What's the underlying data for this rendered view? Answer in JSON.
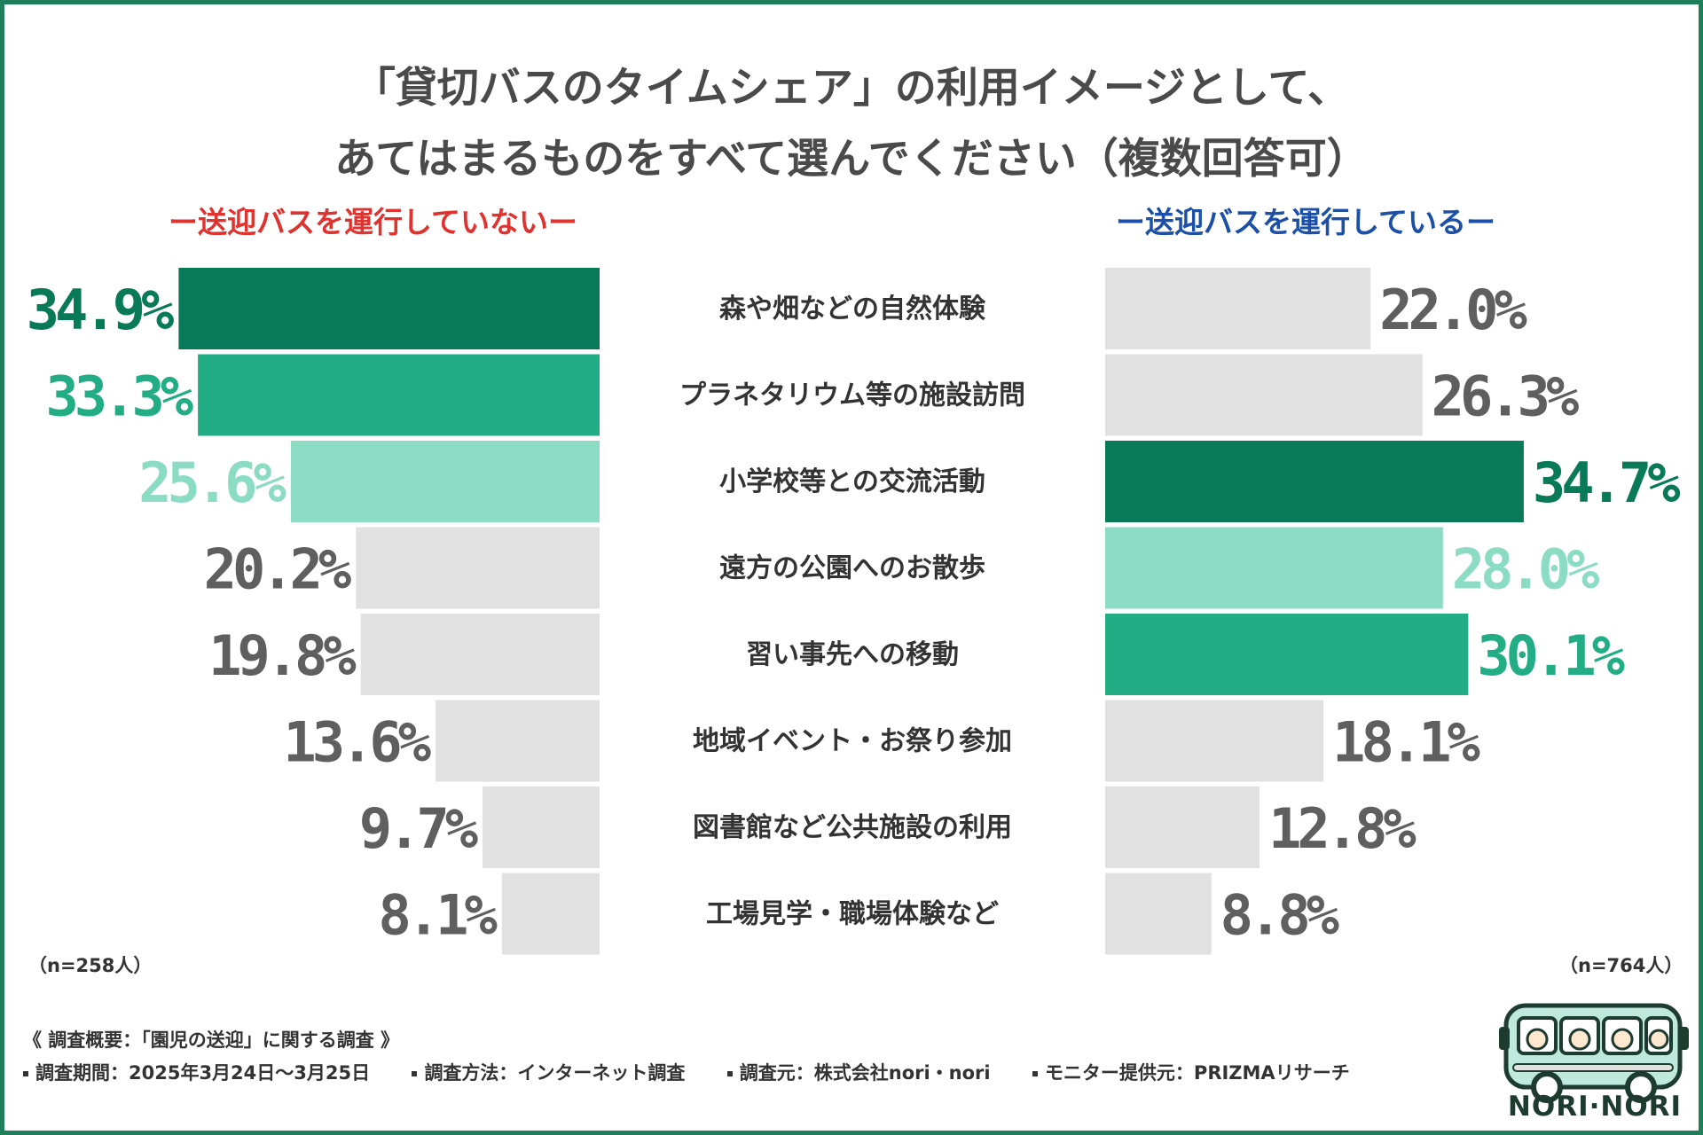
{
  "title_line1": "「貸切バスのタイムシェア」の利用イメージとして、",
  "title_line2": "あてはまるものをすべて選んでください（複数回答可）",
  "left_header": "ー送迎バスを運行していないー",
  "right_header": "ー送迎バスを運行しているー",
  "left_n": "（n=258人）",
  "right_n": "（n=764人）",
  "footer": {
    "summary": "《 調査概要：「園児の送迎」に関する調査 》",
    "items": [
      "調査期間：2025年3月24日〜3月25日",
      "調査方法：インターネット調査",
      "調査元：株式会社nori・nori",
      "モニター提供元：PRIZMAリサーチ"
    ]
  },
  "logo_text": "NORI·NORI",
  "colors": {
    "dark_green": "#097a58",
    "mid_green": "#22ad85",
    "light_green": "#8cdcc4",
    "gray_bar": "#e1e1e1",
    "gray_text": "#5f5f5f",
    "frame": "#1f7f5b",
    "left_header": "#e0332f",
    "right_header": "#1b4fa8"
  },
  "chart_data": {
    "type": "bar",
    "orientation": "horizontal-butterfly",
    "title": "「貸切バスのタイムシェア」の利用イメージとして、あてはまるものをすべて選んでください（複数回答可）",
    "categories": [
      "森や畑などの自然体験",
      "プラネタリウム等の施設訪問",
      "小学校等との交流活動",
      "遠方の公園へのお散歩",
      "習い事先への移動",
      "地域イベント・お祭り参加",
      "図書館など公共施設の利用",
      "工場見学・職場体験など"
    ],
    "series": [
      {
        "name": "ー送迎バスを運行していないー",
        "values": [
          34.9,
          33.3,
          25.6,
          20.2,
          19.8,
          13.6,
          9.7,
          8.1
        ],
        "labels": [
          "34.9%",
          "33.3%",
          "25.6%",
          "20.2%",
          "19.8%",
          "13.6%",
          "9.7%",
          "8.1%"
        ],
        "highlight_rank": [
          "dark",
          "mid",
          "light",
          null,
          null,
          null,
          null,
          null
        ]
      },
      {
        "name": "ー送迎バスを運行しているー",
        "values": [
          22.0,
          26.3,
          34.7,
          28.0,
          30.1,
          18.1,
          12.8,
          8.8
        ],
        "labels": [
          "22.0%",
          "26.3%",
          "34.7%",
          "28.0%",
          "30.1%",
          "18.1%",
          "12.8%",
          "8.8%"
        ],
        "highlight_rank": [
          null,
          null,
          "dark",
          "light",
          "mid",
          null,
          null,
          null
        ]
      }
    ],
    "xlim": [
      0,
      40
    ],
    "unit": "%"
  }
}
